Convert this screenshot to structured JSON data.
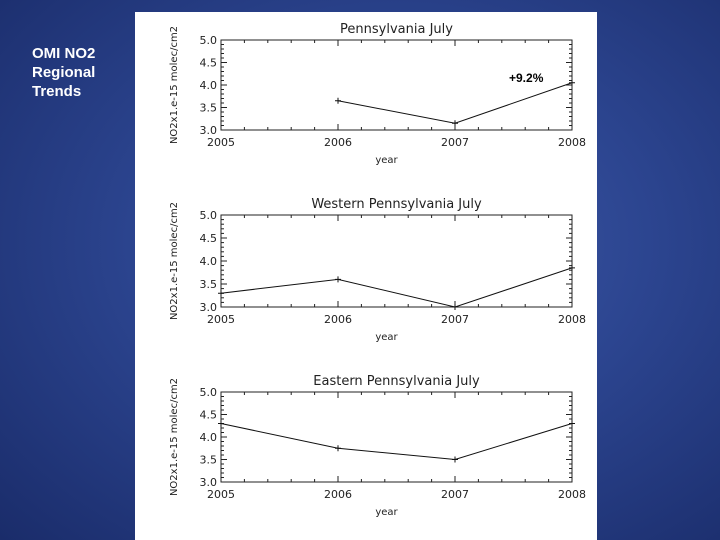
{
  "slide": {
    "title_lines": [
      "OMI NO2",
      "Regional",
      "Trends"
    ],
    "callout": "+9.2%"
  },
  "chart_data": [
    {
      "type": "line",
      "title": "Pennsylvania July",
      "xlabel": "year",
      "ylabel": "NO2x1.e-15 molec/cm2",
      "x": [
        2006,
        2007,
        2008
      ],
      "series": [
        {
          "values": [
            3.65,
            3.15,
            4.05
          ]
        }
      ],
      "xlim": [
        2005,
        2008
      ],
      "ylim": [
        3.0,
        5.0
      ],
      "xticks": [
        "2005",
        "2006",
        "2007",
        "2008"
      ],
      "yticks": [
        "3.0",
        "3.5",
        "4.0",
        "4.5",
        "5.0"
      ],
      "grid": false
    },
    {
      "type": "line",
      "title": "Western Pennsylvania July",
      "xlabel": "year",
      "ylabel": "NO2x1.e-15 molec/cm2",
      "x": [
        2005,
        2006,
        2007,
        2008
      ],
      "series": [
        {
          "values": [
            3.3,
            3.6,
            3.0,
            3.85
          ]
        }
      ],
      "xlim": [
        2005,
        2008
      ],
      "ylim": [
        3.0,
        5.0
      ],
      "xticks": [
        "2005",
        "2006",
        "2007",
        "2008"
      ],
      "yticks": [
        "3.0",
        "3.5",
        "4.0",
        "4.5",
        "5.0"
      ],
      "grid": false
    },
    {
      "type": "line",
      "title": "Eastern Pennsylvania July",
      "xlabel": "year",
      "ylabel": "NO2x1.e-15 molec/cm2",
      "x": [
        2005,
        2006,
        2007,
        2008
      ],
      "series": [
        {
          "values": [
            4.3,
            3.75,
            3.5,
            4.3
          ]
        }
      ],
      "xlim": [
        2005,
        2008
      ],
      "ylim": [
        3.0,
        5.0
      ],
      "xticks": [
        "2005",
        "2006",
        "2007",
        "2008"
      ],
      "yticks": [
        "3.0",
        "3.5",
        "4.0",
        "4.5",
        "5.0"
      ],
      "grid": false
    }
  ]
}
